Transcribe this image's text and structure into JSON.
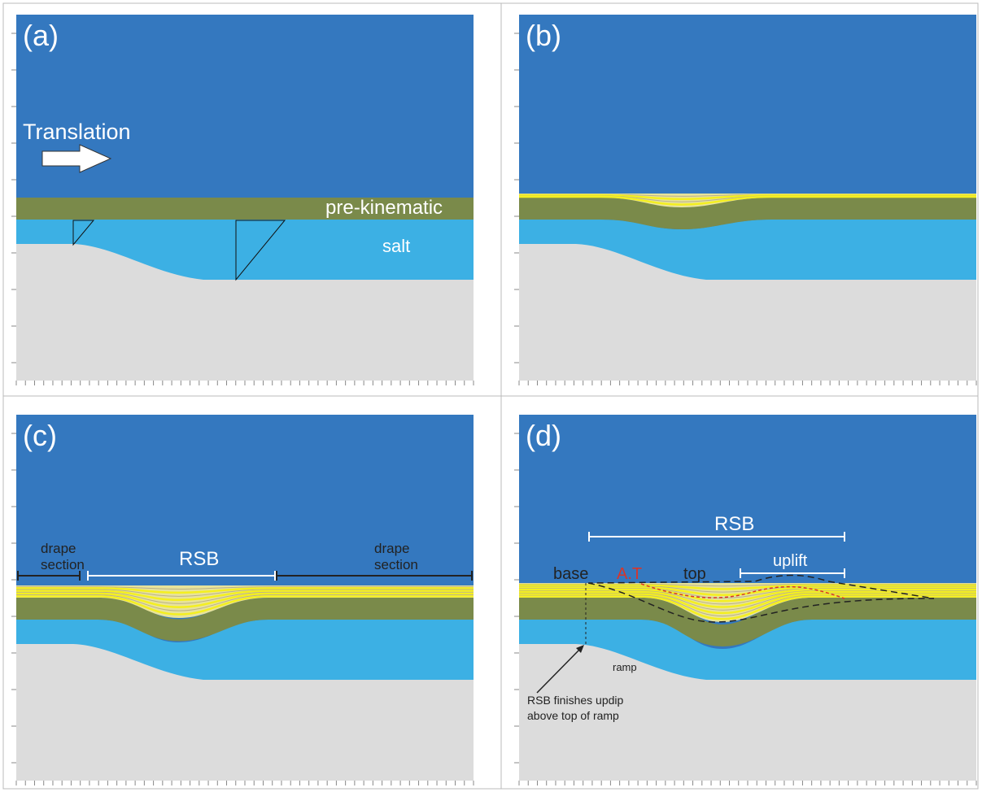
{
  "panels": [
    {
      "label": "(a)",
      "translation": "Translation",
      "pre_kinematic": "pre-kinematic",
      "salt": "salt"
    },
    {
      "label": "(b)"
    },
    {
      "label": "(c)",
      "drape_left": [
        "drape",
        "section"
      ],
      "rsb": "RSB",
      "drape_right": [
        "drape",
        "section"
      ]
    },
    {
      "label": "(d)",
      "rsb": "RSB",
      "base": "base",
      "at": "A.T",
      "top": "top",
      "uplift": "uplift",
      "ramp": "ramp",
      "note": [
        "RSB finishes updip",
        "above top of ramp"
      ]
    }
  ]
}
